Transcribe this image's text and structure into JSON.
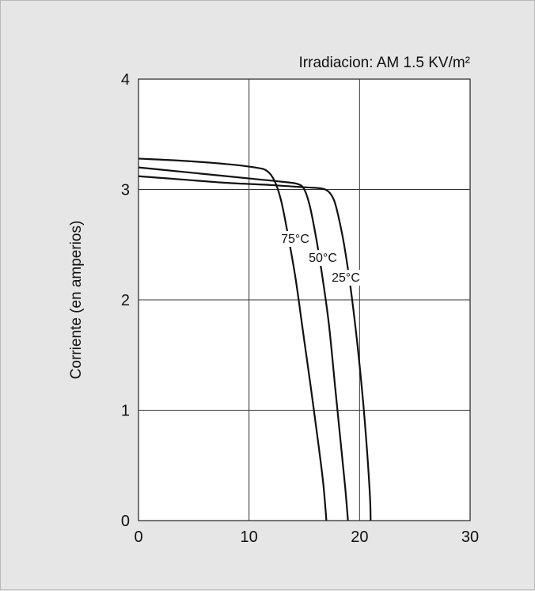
{
  "chart_data": {
    "type": "line",
    "title": "Irradiacion: AM 1.5 KV/m²",
    "xlabel": "",
    "ylabel": "Corriente (en amperios)",
    "xlim": [
      0,
      30
    ],
    "ylim": [
      0,
      4
    ],
    "xticks": [
      0,
      10,
      20,
      30
    ],
    "yticks": [
      0,
      1,
      2,
      3,
      4
    ],
    "grid": true,
    "colors": {
      "background": "#e6e6e6",
      "plot_background": "#ffffff",
      "line": "#111111",
      "grid": "#333333"
    },
    "series": [
      {
        "name": "25°C",
        "points": [
          [
            0,
            3.12
          ],
          [
            4,
            3.09
          ],
          [
            8,
            3.06
          ],
          [
            12,
            3.04
          ],
          [
            15,
            3.02
          ],
          [
            16.5,
            3.01
          ],
          [
            17.2,
            2.98
          ],
          [
            17.7,
            2.9
          ],
          [
            18.1,
            2.75
          ],
          [
            18.6,
            2.5
          ],
          [
            19.2,
            2.1
          ],
          [
            19.8,
            1.6
          ],
          [
            20.3,
            1.1
          ],
          [
            20.7,
            0.6
          ],
          [
            20.95,
            0.2
          ],
          [
            21.0,
            0.0
          ]
        ]
      },
      {
        "name": "50°C",
        "points": [
          [
            0,
            3.2
          ],
          [
            4,
            3.16
          ],
          [
            8,
            3.12
          ],
          [
            11,
            3.09
          ],
          [
            13,
            3.07
          ],
          [
            14.4,
            3.05
          ],
          [
            15.0,
            3.0
          ],
          [
            15.5,
            2.85
          ],
          [
            16.0,
            2.6
          ],
          [
            16.5,
            2.3
          ],
          [
            17.2,
            1.8
          ],
          [
            17.8,
            1.2
          ],
          [
            18.3,
            0.7
          ],
          [
            18.7,
            0.3
          ],
          [
            18.95,
            0.0
          ]
        ]
      },
      {
        "name": "75°C",
        "points": [
          [
            0,
            3.28
          ],
          [
            4,
            3.26
          ],
          [
            8,
            3.23
          ],
          [
            10.5,
            3.2
          ],
          [
            11.6,
            3.17
          ],
          [
            12.3,
            3.08
          ],
          [
            12.9,
            2.9
          ],
          [
            13.5,
            2.6
          ],
          [
            14.2,
            2.2
          ],
          [
            14.9,
            1.7
          ],
          [
            15.6,
            1.2
          ],
          [
            16.2,
            0.75
          ],
          [
            16.7,
            0.35
          ],
          [
            17.0,
            0.0
          ]
        ]
      }
    ],
    "annotations": [
      {
        "text": "75°C",
        "series": "75°C"
      },
      {
        "text": "50°C",
        "series": "50°C"
      },
      {
        "text": "25°C",
        "series": "25°C"
      }
    ]
  }
}
